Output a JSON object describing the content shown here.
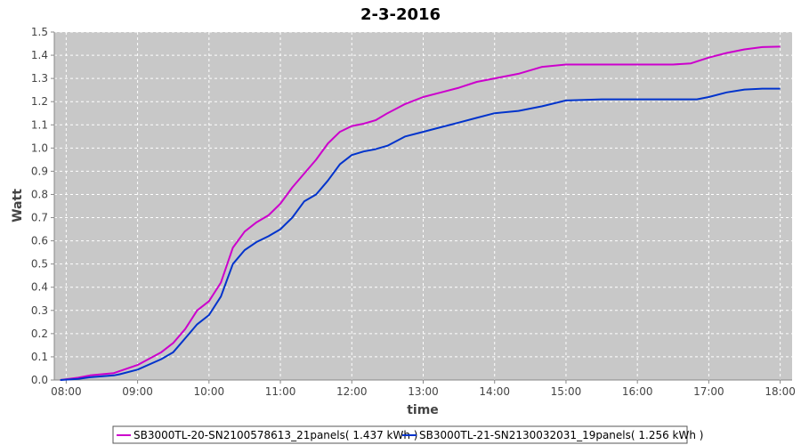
{
  "chart_data": {
    "type": "line",
    "title": "2-3-2016",
    "xlabel": "time",
    "ylabel": "Watt",
    "xlim": [
      "07:50",
      "18:10"
    ],
    "ylim": [
      0.0,
      1.5
    ],
    "x_ticks": [
      "08:00",
      "09:00",
      "10:00",
      "11:00",
      "12:00",
      "13:00",
      "14:00",
      "15:00",
      "16:00",
      "17:00",
      "18:00"
    ],
    "y_ticks": [
      "0.0",
      "0.1",
      "0.2",
      "0.3",
      "0.4",
      "0.5",
      "0.6",
      "0.7",
      "0.8",
      "0.9",
      "1.0",
      "1.1",
      "1.2",
      "1.3",
      "1.4",
      "1.5"
    ],
    "grid": true,
    "legend_position": "bottom",
    "background": "#c8c8c8",
    "series": [
      {
        "name": "SB3000TL-20-SN2100578613_21panels( 1.437 kWh )",
        "color": "#cc00cc",
        "points": [
          [
            "07:55",
            0.0
          ],
          [
            "08:10",
            0.01
          ],
          [
            "08:20",
            0.02
          ],
          [
            "08:40",
            0.03
          ],
          [
            "09:00",
            0.065
          ],
          [
            "09:20",
            0.12
          ],
          [
            "09:30",
            0.16
          ],
          [
            "09:40",
            0.22
          ],
          [
            "09:50",
            0.3
          ],
          [
            "10:00",
            0.34
          ],
          [
            "10:10",
            0.42
          ],
          [
            "10:20",
            0.57
          ],
          [
            "10:30",
            0.64
          ],
          [
            "10:40",
            0.68
          ],
          [
            "10:50",
            0.71
          ],
          [
            "11:00",
            0.76
          ],
          [
            "11:10",
            0.83
          ],
          [
            "11:20",
            0.89
          ],
          [
            "11:30",
            0.95
          ],
          [
            "11:40",
            1.02
          ],
          [
            "11:50",
            1.07
          ],
          [
            "12:00",
            1.095
          ],
          [
            "12:10",
            1.105
          ],
          [
            "12:20",
            1.12
          ],
          [
            "12:30",
            1.15
          ],
          [
            "12:45",
            1.19
          ],
          [
            "13:00",
            1.22
          ],
          [
            "13:15",
            1.24
          ],
          [
            "13:30",
            1.26
          ],
          [
            "13:45",
            1.285
          ],
          [
            "14:00",
            1.3
          ],
          [
            "14:20",
            1.32
          ],
          [
            "14:40",
            1.35
          ],
          [
            "15:00",
            1.36
          ],
          [
            "15:30",
            1.36
          ],
          [
            "16:00",
            1.36
          ],
          [
            "16:30",
            1.36
          ],
          [
            "16:45",
            1.365
          ],
          [
            "17:00",
            1.39
          ],
          [
            "17:15",
            1.41
          ],
          [
            "17:30",
            1.425
          ],
          [
            "17:45",
            1.435
          ],
          [
            "18:00",
            1.437
          ]
        ]
      },
      {
        "name": "SB3000TL-21-SN2130032031_19panels( 1.256 kWh )",
        "color": "#0033cc",
        "points": [
          [
            "07:55",
            0.0
          ],
          [
            "08:10",
            0.005
          ],
          [
            "08:20",
            0.012
          ],
          [
            "08:40",
            0.02
          ],
          [
            "08:45",
            0.025
          ],
          [
            "09:00",
            0.045
          ],
          [
            "09:20",
            0.09
          ],
          [
            "09:30",
            0.12
          ],
          [
            "09:40",
            0.18
          ],
          [
            "09:50",
            0.24
          ],
          [
            "10:00",
            0.28
          ],
          [
            "10:10",
            0.36
          ],
          [
            "10:20",
            0.5
          ],
          [
            "10:30",
            0.56
          ],
          [
            "10:40",
            0.595
          ],
          [
            "10:50",
            0.62
          ],
          [
            "11:00",
            0.65
          ],
          [
            "11:10",
            0.7
          ],
          [
            "11:20",
            0.77
          ],
          [
            "11:30",
            0.8
          ],
          [
            "11:40",
            0.86
          ],
          [
            "11:50",
            0.93
          ],
          [
            "12:00",
            0.97
          ],
          [
            "12:10",
            0.985
          ],
          [
            "12:20",
            0.995
          ],
          [
            "12:30",
            1.01
          ],
          [
            "12:45",
            1.05
          ],
          [
            "13:00",
            1.07
          ],
          [
            "13:15",
            1.09
          ],
          [
            "13:30",
            1.11
          ],
          [
            "13:45",
            1.13
          ],
          [
            "14:00",
            1.15
          ],
          [
            "14:20",
            1.16
          ],
          [
            "14:40",
            1.18
          ],
          [
            "15:00",
            1.205
          ],
          [
            "15:30",
            1.21
          ],
          [
            "16:00",
            1.21
          ],
          [
            "16:30",
            1.21
          ],
          [
            "16:50",
            1.21
          ],
          [
            "17:00",
            1.22
          ],
          [
            "17:15",
            1.24
          ],
          [
            "17:30",
            1.252
          ],
          [
            "17:45",
            1.256
          ],
          [
            "18:00",
            1.256
          ]
        ]
      }
    ]
  }
}
